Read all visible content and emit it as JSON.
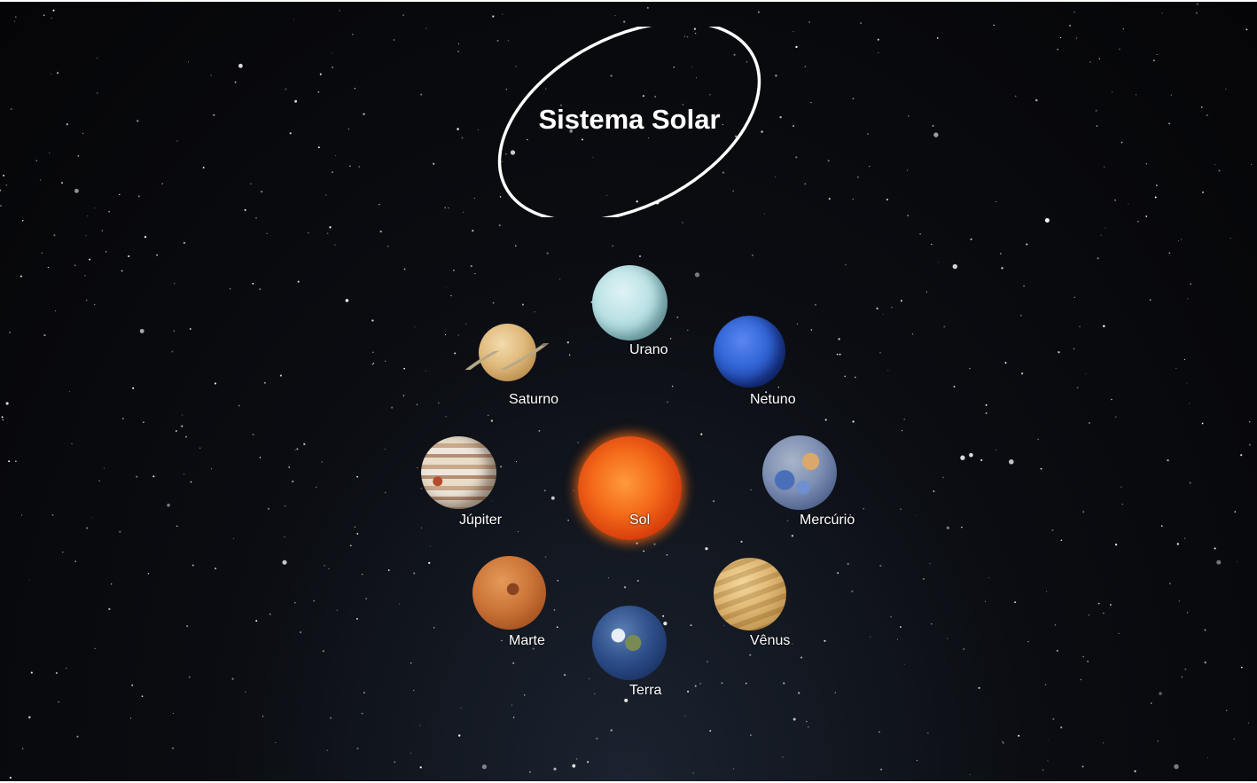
{
  "title": "Sistema Solar",
  "bodies": [
    {
      "key": "urano",
      "label": "Urano",
      "icon": "uranus-icon"
    },
    {
      "key": "netuno",
      "label": "Netuno",
      "icon": "neptune-icon"
    },
    {
      "key": "saturno",
      "label": "Saturno",
      "icon": "saturn-icon"
    },
    {
      "key": "jupiter",
      "label": "Júpiter",
      "icon": "jupiter-icon"
    },
    {
      "key": "sol",
      "label": "Sol",
      "icon": "sun-icon"
    },
    {
      "key": "mercurio",
      "label": "Mercúrio",
      "icon": "mercury-icon"
    },
    {
      "key": "marte",
      "label": "Marte",
      "icon": "mars-icon"
    },
    {
      "key": "venus",
      "label": "Vênus",
      "icon": "venus-icon"
    },
    {
      "key": "terra",
      "label": "Terra",
      "icon": "earth-icon"
    }
  ],
  "colors": {
    "background": "#050507",
    "text": "#ffffff",
    "oval_stroke": "#ffffff"
  }
}
